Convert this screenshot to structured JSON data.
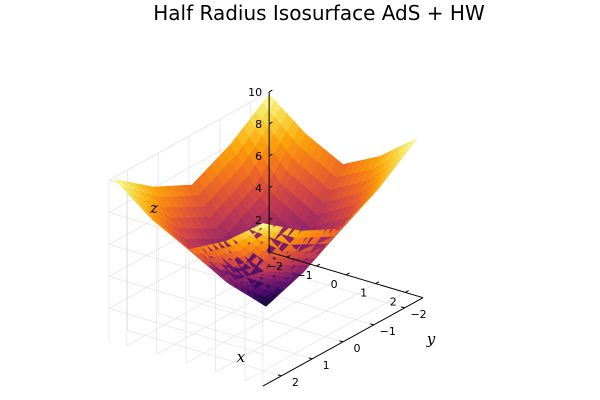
{
  "chart_data": {
    "type": "surface",
    "title": "Half Radius Isosurface AdS + HW",
    "xlabel": "x",
    "ylabel": "y",
    "zlabel": "z",
    "xlim": [
      -2.6,
      2.6
    ],
    "ylim": [
      -2.6,
      2.6
    ],
    "zlim": [
      0,
      10
    ],
    "x_ticks": [
      "−2",
      "−1",
      "0",
      "1",
      "2"
    ],
    "y_ticks": [
      "−2",
      "−1",
      "0",
      "1",
      "2"
    ],
    "z_ticks": [
      "2",
      "4",
      "6",
      "8",
      "10"
    ],
    "colormap": "inferno",
    "grid": true,
    "legend": "none",
    "surface_samples": {
      "description_of_axes": "z at grid points (x,y)",
      "x": [
        -2.5,
        -1.25,
        0,
        1.25,
        2.5
      ],
      "y": [
        -2.5,
        -1.25,
        0,
        1.25,
        2.5
      ],
      "z": [
        [
          10.0,
          8.2,
          7.0,
          8.2,
          10.0
        ],
        [
          8.2,
          5.0,
          3.6,
          5.0,
          8.2
        ],
        [
          7.0,
          3.6,
          0.8,
          3.6,
          7.0
        ],
        [
          8.2,
          5.0,
          3.6,
          5.0,
          8.2
        ],
        [
          10.0,
          8.2,
          7.0,
          8.2,
          10.0
        ]
      ]
    }
  }
}
